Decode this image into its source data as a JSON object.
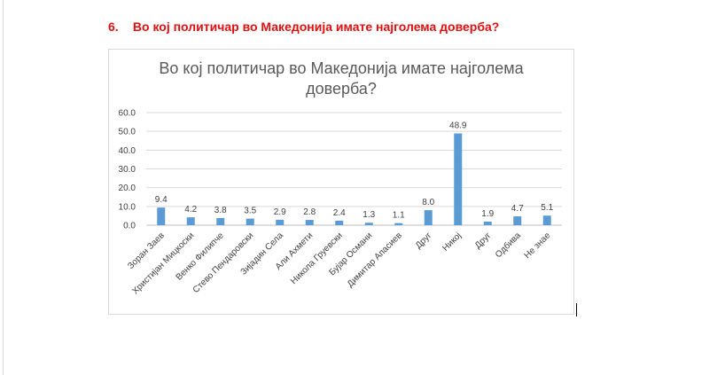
{
  "question": {
    "number": "6.",
    "text": "Во кој политичар во Македонија имате најголема доверба?"
  },
  "chart_data": {
    "type": "bar",
    "title_lines": [
      "Во кој политичар во Македонија имате најголема",
      "доверба?"
    ],
    "categories": [
      "Зоран Заев",
      "Христијан Мицкоски",
      "Венко Филипче",
      "Стево Пендаровски",
      "Зијадин Села",
      "Али Ахмети",
      "Никола Груевски",
      "Бујар Османи",
      "Димитар Апасиев",
      "Друг",
      "Никој",
      "Друг",
      "Одбива",
      "Не знае"
    ],
    "values": [
      9.4,
      4.2,
      3.8,
      3.5,
      2.9,
      2.8,
      2.4,
      1.3,
      1.1,
      8.0,
      48.9,
      1.9,
      4.7,
      5.1
    ],
    "value_labels": [
      "9.4",
      "4.2",
      "3.8",
      "3.5",
      "2.9",
      "2.8",
      "2.4",
      "1.3",
      "1.1",
      "8.0",
      "48.9",
      "1.9",
      "4.7",
      "5.1"
    ],
    "yticks": [
      "0.0",
      "10.0",
      "20.0",
      "30.0",
      "40.0",
      "50.0",
      "60.0"
    ],
    "ylim": [
      0,
      60
    ],
    "grid": true,
    "legend": "none",
    "bar_color": "#5b9bd5"
  }
}
